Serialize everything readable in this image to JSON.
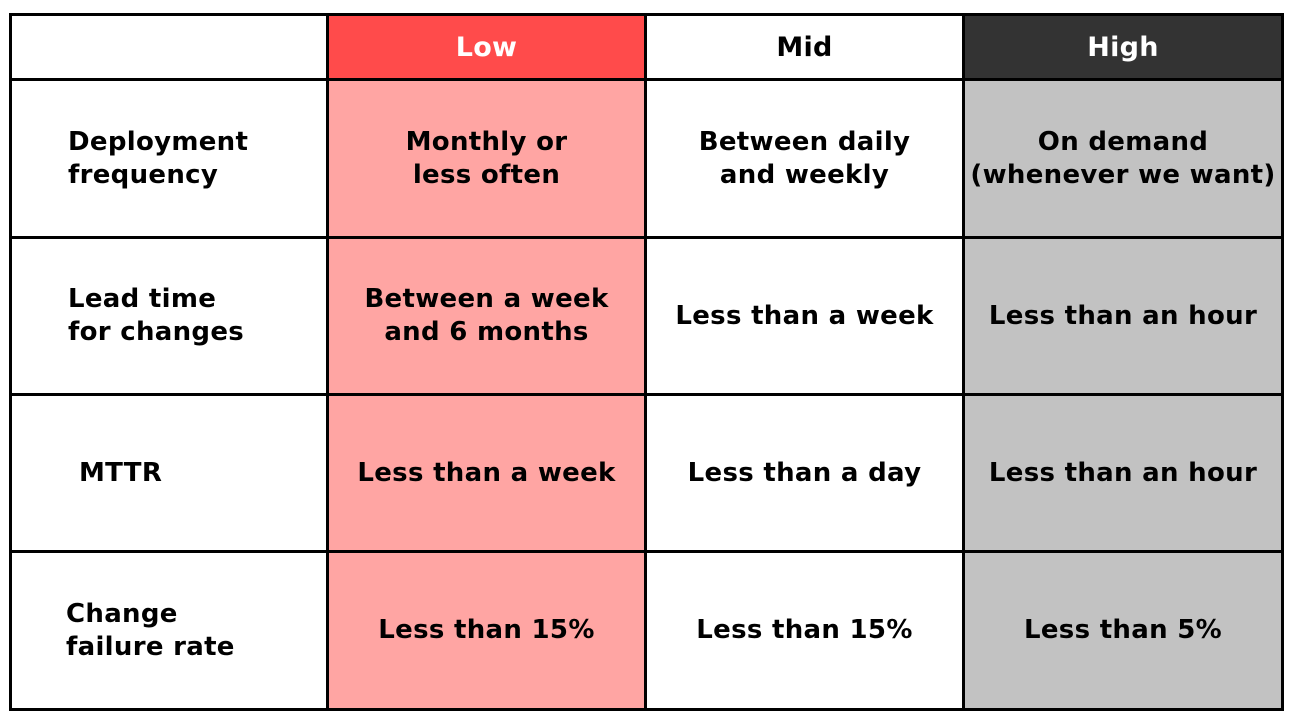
{
  "colors": {
    "low_header": "#ff4b4b",
    "low_cell": "#ffa5a3",
    "mid_header": "#ffffff",
    "mid_cell": "#ffffff",
    "high_header": "#333333",
    "high_cell": "#c2c2c2",
    "border": "#000000"
  },
  "header": {
    "corner": "",
    "columns": [
      "Low",
      "Mid",
      "High"
    ]
  },
  "rows": [
    {
      "metric": "Deployment\nfrequency",
      "low": "Monthly or\nless often",
      "mid": "Between daily\nand weekly",
      "high": "On demand\n(whenever we want)"
    },
    {
      "metric": "Lead time\nfor changes",
      "low": "Between a week\nand 6 months",
      "mid": "Less than a week",
      "high": "Less than an hour"
    },
    {
      "metric": "MTTR",
      "low": "Less than a week",
      "mid": "Less than a day",
      "high": "Less than an hour"
    },
    {
      "metric": "Change\nfailure rate",
      "low": "Less than 15%",
      "mid": "Less than 15%",
      "high": "Less than 5%"
    }
  ]
}
